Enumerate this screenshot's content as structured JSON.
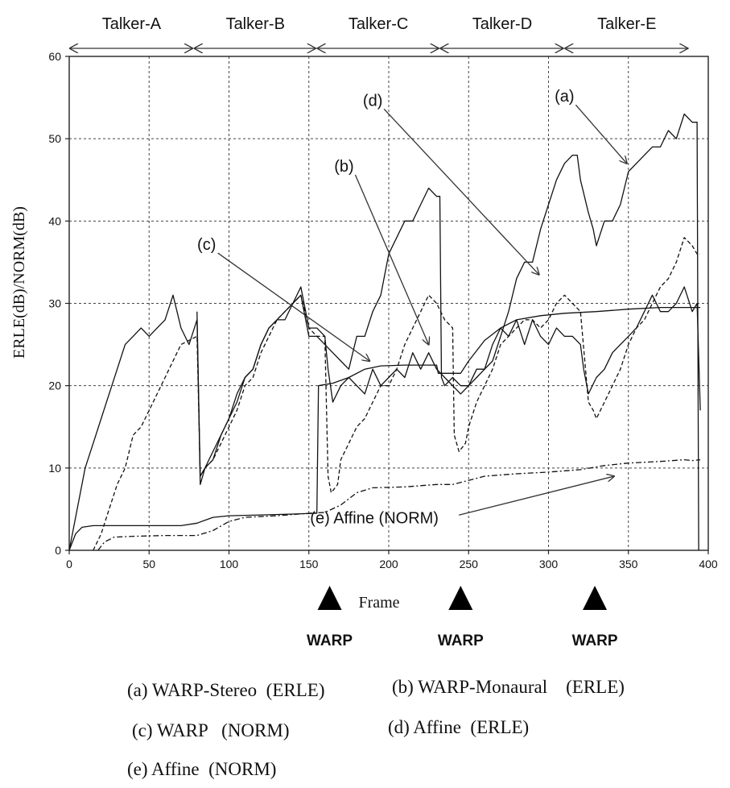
{
  "chart_data": {
    "type": "line",
    "xlabel": "Frame",
    "ylabel": "ERLE(dB)/NORM(dB)",
    "xlim": [
      0,
      400
    ],
    "ylim": [
      0,
      60
    ],
    "x_ticks": [
      "0",
      "50",
      "100",
      "150",
      "200",
      "250",
      "300",
      "350",
      "400"
    ],
    "y_ticks": [
      "0",
      "10",
      "20",
      "30",
      "40",
      "50",
      "60"
    ],
    "grid": true,
    "talkers": [
      {
        "label": "Talker-A",
        "start": 0,
        "end": 78
      },
      {
        "label": "Talker-B",
        "start": 78,
        "end": 155
      },
      {
        "label": "Talker-C",
        "start": 155,
        "end": 232
      },
      {
        "label": "Talker-D",
        "start": 232,
        "end": 310
      },
      {
        "label": "Talker-E",
        "start": 310,
        "end": 388
      }
    ],
    "warp_markers": [
      {
        "label": "WARP",
        "frame": 163
      },
      {
        "label": "WARP",
        "frame": 245
      },
      {
        "label": "WARP",
        "frame": 329
      }
    ],
    "curve_labels": [
      {
        "label": "(a)",
        "x": 310,
        "y": 54.5,
        "target_x": 349,
        "target_y": 47
      },
      {
        "label": "(b)",
        "x": 172,
        "y": 46,
        "target_x": 225,
        "target_y": 25
      },
      {
        "label": "(c)",
        "x": 86,
        "y": 36.5,
        "target_x": 188,
        "target_y": 23
      },
      {
        "label": "(d)",
        "x": 190,
        "y": 54,
        "target_x": 294,
        "target_y": 33.5
      },
      {
        "label": "(e) Affine   (NORM)",
        "x": 191,
        "y": 3.3,
        "target_x": 341,
        "target_y": 9
      }
    ],
    "series": [
      {
        "label": "(a)",
        "style": "solid",
        "points": [
          [
            0,
            0
          ],
          [
            5,
            5
          ],
          [
            10,
            10
          ],
          [
            15,
            13
          ],
          [
            20,
            16
          ],
          [
            25,
            19
          ],
          [
            30,
            22
          ],
          [
            35,
            25
          ],
          [
            40,
            26
          ],
          [
            45,
            27
          ],
          [
            50,
            26
          ],
          [
            55,
            27
          ],
          [
            60,
            28
          ],
          [
            65,
            31
          ],
          [
            70,
            27
          ],
          [
            75,
            25
          ],
          [
            80,
            28
          ],
          [
            82,
            9
          ],
          [
            85,
            10
          ],
          [
            90,
            12
          ],
          [
            95,
            14
          ],
          [
            100,
            16
          ],
          [
            105,
            19
          ],
          [
            110,
            21
          ],
          [
            115,
            22
          ],
          [
            120,
            25
          ],
          [
            125,
            27
          ],
          [
            130,
            28
          ],
          [
            135,
            29
          ],
          [
            140,
            30
          ],
          [
            145,
            31
          ],
          [
            150,
            26
          ],
          [
            155,
            26
          ],
          [
            160,
            25
          ],
          [
            165,
            24
          ],
          [
            170,
            23
          ],
          [
            175,
            22
          ],
          [
            180,
            26
          ],
          [
            185,
            26
          ],
          [
            190,
            29
          ],
          [
            195,
            31
          ],
          [
            200,
            36
          ],
          [
            205,
            38
          ],
          [
            210,
            40
          ],
          [
            215,
            40
          ],
          [
            220,
            42
          ],
          [
            225,
            44
          ],
          [
            230,
            43
          ],
          [
            232,
            43
          ],
          [
            233,
            21
          ],
          [
            235,
            20
          ],
          [
            240,
            21
          ],
          [
            245,
            20
          ],
          [
            250,
            20
          ],
          [
            255,
            22
          ],
          [
            260,
            22
          ],
          [
            265,
            23
          ],
          [
            270,
            26
          ],
          [
            275,
            29
          ],
          [
            280,
            33
          ],
          [
            285,
            35
          ],
          [
            290,
            35
          ],
          [
            295,
            39
          ],
          [
            300,
            42
          ],
          [
            305,
            45
          ],
          [
            310,
            47
          ],
          [
            315,
            48
          ],
          [
            318,
            48
          ],
          [
            320,
            45
          ],
          [
            325,
            41
          ],
          [
            328,
            39
          ],
          [
            330,
            37
          ],
          [
            335,
            40
          ],
          [
            340,
            40
          ],
          [
            345,
            42
          ],
          [
            350,
            46
          ],
          [
            355,
            47
          ],
          [
            360,
            48
          ],
          [
            365,
            49
          ],
          [
            370,
            49
          ],
          [
            375,
            51
          ],
          [
            380,
            50
          ],
          [
            385,
            53
          ],
          [
            390,
            52
          ],
          [
            393,
            52
          ],
          [
            394,
            0
          ]
        ]
      },
      {
        "label": "(b)",
        "style": "solid",
        "points": [
          [
            80,
            29
          ],
          [
            82,
            8
          ],
          [
            85,
            10
          ],
          [
            90,
            11
          ],
          [
            95,
            14
          ],
          [
            100,
            16
          ],
          [
            105,
            18
          ],
          [
            110,
            21
          ],
          [
            115,
            22
          ],
          [
            120,
            25
          ],
          [
            125,
            27
          ],
          [
            130,
            28
          ],
          [
            135,
            28
          ],
          [
            140,
            30
          ],
          [
            145,
            32
          ],
          [
            150,
            27
          ],
          [
            155,
            27
          ],
          [
            160,
            26
          ],
          [
            162,
            22
          ],
          [
            165,
            18
          ],
          [
            170,
            20
          ],
          [
            175,
            21
          ],
          [
            180,
            20
          ],
          [
            185,
            19
          ],
          [
            190,
            22
          ],
          [
            195,
            20
          ],
          [
            200,
            21
          ],
          [
            205,
            22
          ],
          [
            210,
            21
          ],
          [
            215,
            24
          ],
          [
            220,
            22
          ],
          [
            225,
            24
          ],
          [
            230,
            22
          ],
          [
            235,
            21
          ],
          [
            240,
            20
          ],
          [
            245,
            19
          ],
          [
            250,
            20
          ],
          [
            255,
            21
          ],
          [
            260,
            22
          ],
          [
            265,
            25
          ],
          [
            270,
            27
          ],
          [
            275,
            26
          ],
          [
            280,
            28
          ],
          [
            285,
            25
          ],
          [
            290,
            28
          ],
          [
            295,
            26
          ],
          [
            300,
            25
          ],
          [
            305,
            27
          ],
          [
            310,
            26
          ],
          [
            315,
            26
          ],
          [
            320,
            25
          ],
          [
            322,
            22
          ],
          [
            325,
            19
          ],
          [
            330,
            21
          ],
          [
            335,
            22
          ],
          [
            340,
            24
          ],
          [
            345,
            25
          ],
          [
            350,
            26
          ],
          [
            355,
            27
          ],
          [
            360,
            29
          ],
          [
            365,
            31
          ],
          [
            370,
            29
          ],
          [
            375,
            29
          ],
          [
            380,
            30
          ],
          [
            385,
            32
          ],
          [
            390,
            29
          ],
          [
            393,
            30
          ],
          [
            395,
            17
          ]
        ]
      },
      {
        "label": "(c)",
        "style": "solid",
        "points": [
          [
            0,
            0
          ],
          [
            4,
            2
          ],
          [
            8,
            2.8
          ],
          [
            15,
            3
          ],
          [
            30,
            3
          ],
          [
            50,
            3
          ],
          [
            70,
            3
          ],
          [
            80,
            3.3
          ],
          [
            90,
            4
          ],
          [
            100,
            4.2
          ],
          [
            120,
            4.3
          ],
          [
            140,
            4.4
          ],
          [
            155,
            4.5
          ],
          [
            156,
            20
          ],
          [
            165,
            20.3
          ],
          [
            175,
            21
          ],
          [
            185,
            22
          ],
          [
            195,
            22.4
          ],
          [
            210,
            22.5
          ],
          [
            230,
            22.5
          ],
          [
            231,
            21.5
          ],
          [
            245,
            21.5
          ],
          [
            250,
            23
          ],
          [
            260,
            25.5
          ],
          [
            270,
            27
          ],
          [
            280,
            28
          ],
          [
            295,
            28.5
          ],
          [
            310,
            28.8
          ],
          [
            330,
            29
          ],
          [
            350,
            29.3
          ],
          [
            370,
            29.5
          ],
          [
            390,
            29.5
          ],
          [
            395,
            29.5
          ]
        ]
      },
      {
        "label": "(d)",
        "style": "dashed",
        "points": [
          [
            15,
            0
          ],
          [
            20,
            2
          ],
          [
            25,
            5
          ],
          [
            30,
            8
          ],
          [
            35,
            10
          ],
          [
            40,
            14
          ],
          [
            45,
            15
          ],
          [
            50,
            17
          ],
          [
            55,
            19
          ],
          [
            60,
            21
          ],
          [
            65,
            23
          ],
          [
            70,
            25
          ],
          [
            75,
            25.5
          ],
          [
            80,
            26
          ],
          [
            82,
            9
          ],
          [
            85,
            10
          ],
          [
            90,
            11
          ],
          [
            95,
            13
          ],
          [
            100,
            15
          ],
          [
            105,
            17
          ],
          [
            110,
            20
          ],
          [
            115,
            21
          ],
          [
            120,
            24
          ],
          [
            125,
            26
          ],
          [
            130,
            28
          ],
          [
            135,
            29
          ],
          [
            140,
            30
          ],
          [
            145,
            31
          ],
          [
            150,
            27
          ],
          [
            155,
            26
          ],
          [
            160,
            26
          ],
          [
            162,
            9
          ],
          [
            164,
            7
          ],
          [
            168,
            8
          ],
          [
            170,
            11
          ],
          [
            175,
            13
          ],
          [
            180,
            15
          ],
          [
            185,
            16
          ],
          [
            190,
            18
          ],
          [
            195,
            20
          ],
          [
            200,
            20
          ],
          [
            205,
            22
          ],
          [
            210,
            25
          ],
          [
            215,
            27
          ],
          [
            220,
            29
          ],
          [
            225,
            31
          ],
          [
            230,
            30
          ],
          [
            235,
            28
          ],
          [
            240,
            27
          ],
          [
            241,
            14
          ],
          [
            244,
            12
          ],
          [
            248,
            13
          ],
          [
            250,
            15
          ],
          [
            255,
            18
          ],
          [
            260,
            20
          ],
          [
            265,
            22
          ],
          [
            270,
            25
          ],
          [
            275,
            26
          ],
          [
            280,
            27
          ],
          [
            285,
            28
          ],
          [
            290,
            28
          ],
          [
            295,
            27
          ],
          [
            300,
            28
          ],
          [
            305,
            30
          ],
          [
            310,
            31
          ],
          [
            315,
            30
          ],
          [
            320,
            29
          ],
          [
            325,
            18
          ],
          [
            328,
            17
          ],
          [
            330,
            16
          ],
          [
            335,
            18
          ],
          [
            340,
            20
          ],
          [
            345,
            22
          ],
          [
            350,
            25
          ],
          [
            355,
            27
          ],
          [
            360,
            28
          ],
          [
            365,
            30
          ],
          [
            370,
            32
          ],
          [
            375,
            33
          ],
          [
            380,
            35
          ],
          [
            385,
            38
          ],
          [
            390,
            37
          ],
          [
            393,
            36
          ],
          [
            395,
            36
          ]
        ]
      },
      {
        "label": "(e)",
        "style": "dashdot",
        "points": [
          [
            18,
            0
          ],
          [
            22,
            1
          ],
          [
            28,
            1.6
          ],
          [
            40,
            1.7
          ],
          [
            60,
            1.8
          ],
          [
            80,
            1.8
          ],
          [
            90,
            2.4
          ],
          [
            100,
            3.5
          ],
          [
            110,
            4
          ],
          [
            130,
            4.2
          ],
          [
            150,
            4.5
          ],
          [
            160,
            4.6
          ],
          [
            170,
            5.5
          ],
          [
            180,
            7
          ],
          [
            190,
            7.6
          ],
          [
            210,
            7.7
          ],
          [
            230,
            8
          ],
          [
            240,
            8
          ],
          [
            250,
            8.5
          ],
          [
            260,
            9
          ],
          [
            280,
            9.3
          ],
          [
            300,
            9.5
          ],
          [
            320,
            9.8
          ],
          [
            335,
            10.3
          ],
          [
            350,
            10.6
          ],
          [
            370,
            10.8
          ],
          [
            385,
            11
          ],
          [
            390,
            10.9
          ],
          [
            395,
            11
          ]
        ]
      }
    ]
  },
  "legend": [
    {
      "text": "(a) WARP-Stereo  (ERLE)"
    },
    {
      "text": "(b) WARP-Monaural    (ERLE)"
    },
    {
      "text": "(c) WARP   (NORM)"
    },
    {
      "text": "(d) Affine  (ERLE)"
    },
    {
      "text": "(e) Affine  (NORM)"
    }
  ]
}
